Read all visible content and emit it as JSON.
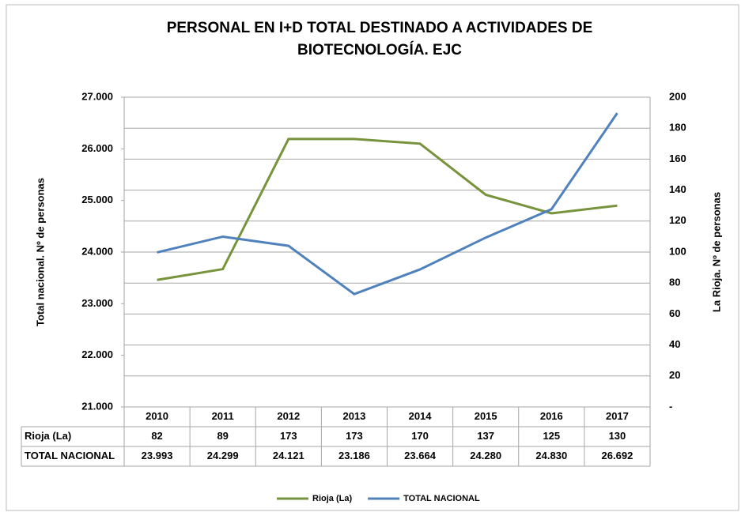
{
  "chart_data": {
    "type": "line",
    "title": "PERSONAL EN I+D TOTAL DESTINADO A ACTIVIDADES DE BIOTECNOLOGÍA. EJC",
    "ylabel": "Total nacional. Nº de personas",
    "y2label": "La Rioja. Nº de personas",
    "categories": [
      "2010",
      "2011",
      "2012",
      "2013",
      "2014",
      "2015",
      "2016",
      "2017"
    ],
    "series": [
      {
        "name": "Rioja (La)",
        "color": "#77933c",
        "axis": "y2",
        "values": [
          82,
          89,
          173,
          173,
          170,
          137,
          125,
          130
        ]
      },
      {
        "name": "TOTAL NACIONAL",
        "color": "#4f81bd",
        "values": [
          23993,
          24299,
          24121,
          23186,
          23664,
          24280,
          24830,
          26692
        ],
        "value_labels": [
          "23.993",
          "24.299",
          "24.121",
          "23.186",
          "23.664",
          "24.280",
          "24.830",
          "26.692"
        ]
      }
    ],
    "ylim": [
      21000,
      27000
    ],
    "yticks": [
      {
        "value": 21000,
        "label": "21.000"
      },
      {
        "value": 22000,
        "label": "22.000"
      },
      {
        "value": 23000,
        "label": "23.000"
      },
      {
        "value": 24000,
        "label": "24.000"
      },
      {
        "value": 25000,
        "label": "25.000"
      },
      {
        "value": 26000,
        "label": "26.000"
      },
      {
        "value": 27000,
        "label": "27.000"
      }
    ],
    "y2lim": [
      0,
      200
    ],
    "y2ticks": [
      {
        "value": 0,
        "label": "-"
      },
      20,
      40,
      60,
      80,
      100,
      120,
      140,
      160,
      180,
      200
    ],
    "grid": true,
    "legend": "bottom"
  }
}
